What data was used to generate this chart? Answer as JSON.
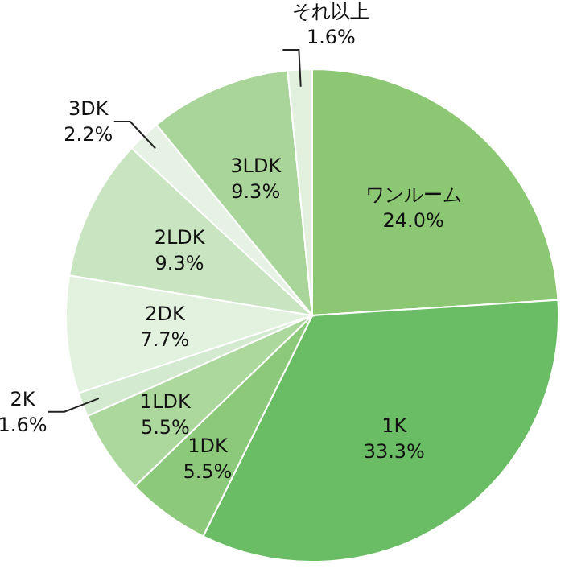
{
  "chart_data": {
    "type": "pie",
    "categories": [
      "ワンルーム",
      "1K",
      "1DK",
      "1LDK",
      "2K",
      "2DK",
      "2LDK",
      "3DK",
      "3LDK",
      "それ以上"
    ],
    "values": [
      24.0,
      33.3,
      5.5,
      5.5,
      1.6,
      7.7,
      9.3,
      2.2,
      9.3,
      1.6
    ],
    "value_labels": [
      "24.0%",
      "33.3%",
      "5.5%",
      "5.5%",
      "1.6%",
      "7.7%",
      "9.3%",
      "2.2%",
      "9.3%",
      "1.6%"
    ],
    "colors": [
      "#8cc873",
      "#6abd64",
      "#8dc97a",
      "#acd79d",
      "#d4ead0",
      "#e3f1df",
      "#c8e4c0",
      "#e6f2e3",
      "#a9d59a",
      "#e2f0de"
    ]
  }
}
